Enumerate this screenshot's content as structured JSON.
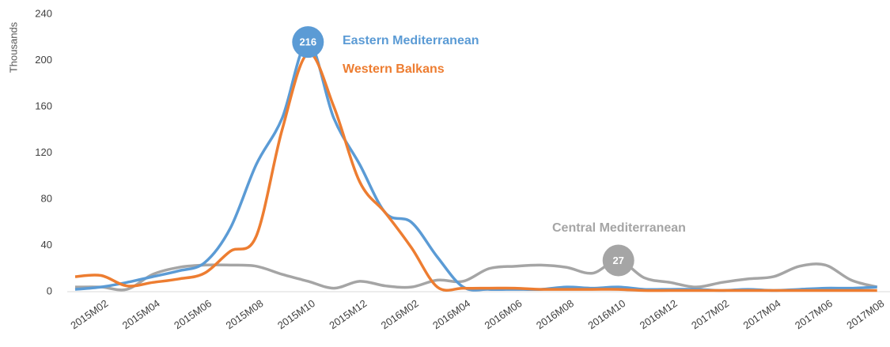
{
  "chart_data": {
    "type": "line",
    "y_label": "Thousands",
    "categories": [
      null,
      "2015M02",
      null,
      "2015M04",
      null,
      "2015M06",
      null,
      "2015M08",
      null,
      "2015M10",
      null,
      "2015M12",
      null,
      "2016M02",
      null,
      "2016M04",
      null,
      "2016M06",
      null,
      "2016M08",
      null,
      "2016M10",
      null,
      "2016M12",
      null,
      "2017M02",
      null,
      "2017M04",
      null,
      "2017M06",
      null,
      "2017M08"
    ],
    "series": [
      {
        "name": "Eastern Mediterranean",
        "color": "#5b9bd5",
        "values": [
          2,
          4,
          8,
          13,
          18,
          25,
          55,
          110,
          150,
          216,
          150,
          110,
          68,
          60,
          30,
          4,
          2,
          2,
          2,
          4,
          3,
          4,
          2,
          2,
          2,
          1,
          2,
          1,
          2,
          3,
          3,
          4
        ]
      },
      {
        "name": "Western Balkans",
        "color": "#ed7d31",
        "values": [
          13,
          14,
          5,
          8,
          11,
          16,
          35,
          48,
          140,
          206,
          160,
          95,
          68,
          38,
          4,
          3,
          3,
          3,
          2,
          2,
          2,
          2,
          1,
          1,
          1,
          1,
          1,
          1,
          1,
          1,
          1,
          1
        ]
      },
      {
        "name": "Central Mediterranean",
        "color": "#a5a5a5",
        "values": [
          4,
          4,
          2,
          15,
          21,
          23,
          23,
          22,
          15,
          9,
          3,
          9,
          5,
          4,
          10,
          9,
          20,
          22,
          23,
          21,
          16,
          27,
          12,
          8,
          4,
          8,
          11,
          13,
          22,
          23,
          10,
          4
        ]
      }
    ],
    "ylim": [
      0,
      240
    ],
    "yticks": [
      0,
      40,
      80,
      120,
      160,
      200,
      240
    ]
  }
}
